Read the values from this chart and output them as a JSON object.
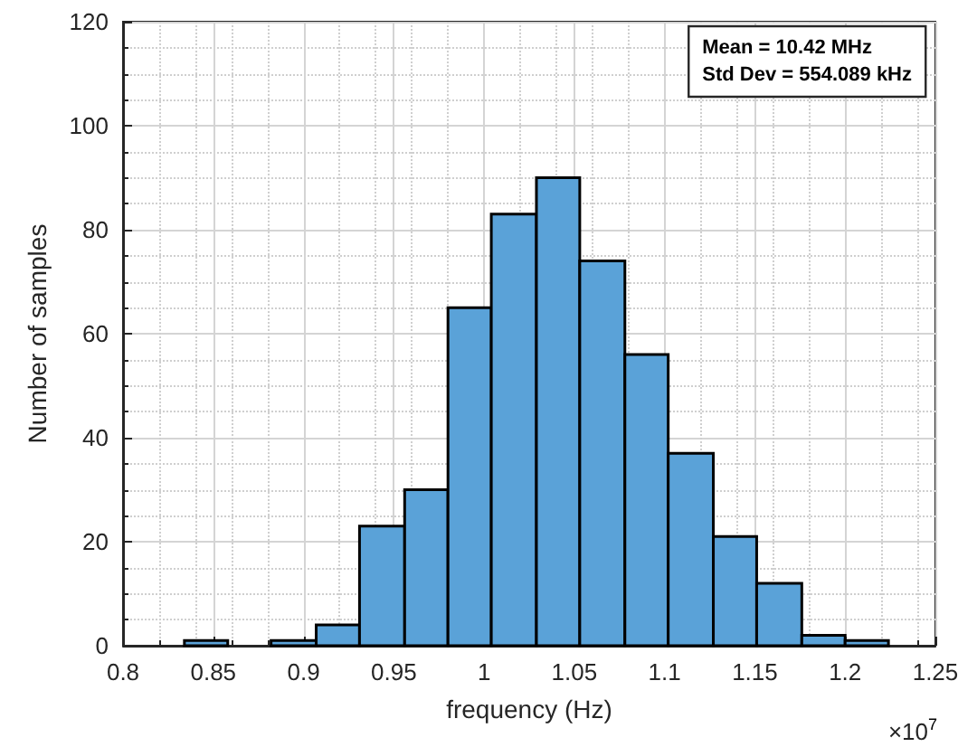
{
  "chart_data": {
    "type": "histogram",
    "xlabel": "frequency (Hz)",
    "ylabel": "Number of samples",
    "bins": [
      0.834,
      0.858,
      0.882,
      0.907,
      0.931,
      0.956,
      0.98,
      1.004,
      1.029,
      1.053,
      1.078,
      1.102,
      1.127,
      1.151,
      1.176,
      1.2,
      1.224
    ],
    "values": [
      1,
      0,
      1,
      4,
      23,
      30,
      65,
      83,
      90,
      74,
      56,
      37,
      21,
      12,
      2,
      1
    ],
    "color": "#5aa2d8",
    "xlim": [
      0.8,
      1.25
    ],
    "xticks": [
      0.8,
      0.85,
      0.9,
      0.95,
      1,
      1.05,
      1.1,
      1.15,
      1.2,
      1.25
    ],
    "ylim": [
      0,
      120
    ],
    "yticks": [
      0,
      20,
      40,
      60,
      80,
      100,
      120
    ],
    "grid": true,
    "annotations": [
      "Mean = 10.42 MHz\nStd Dev = 554.089 kHz",
      "×10$^{7}$"
    ]
  }
}
